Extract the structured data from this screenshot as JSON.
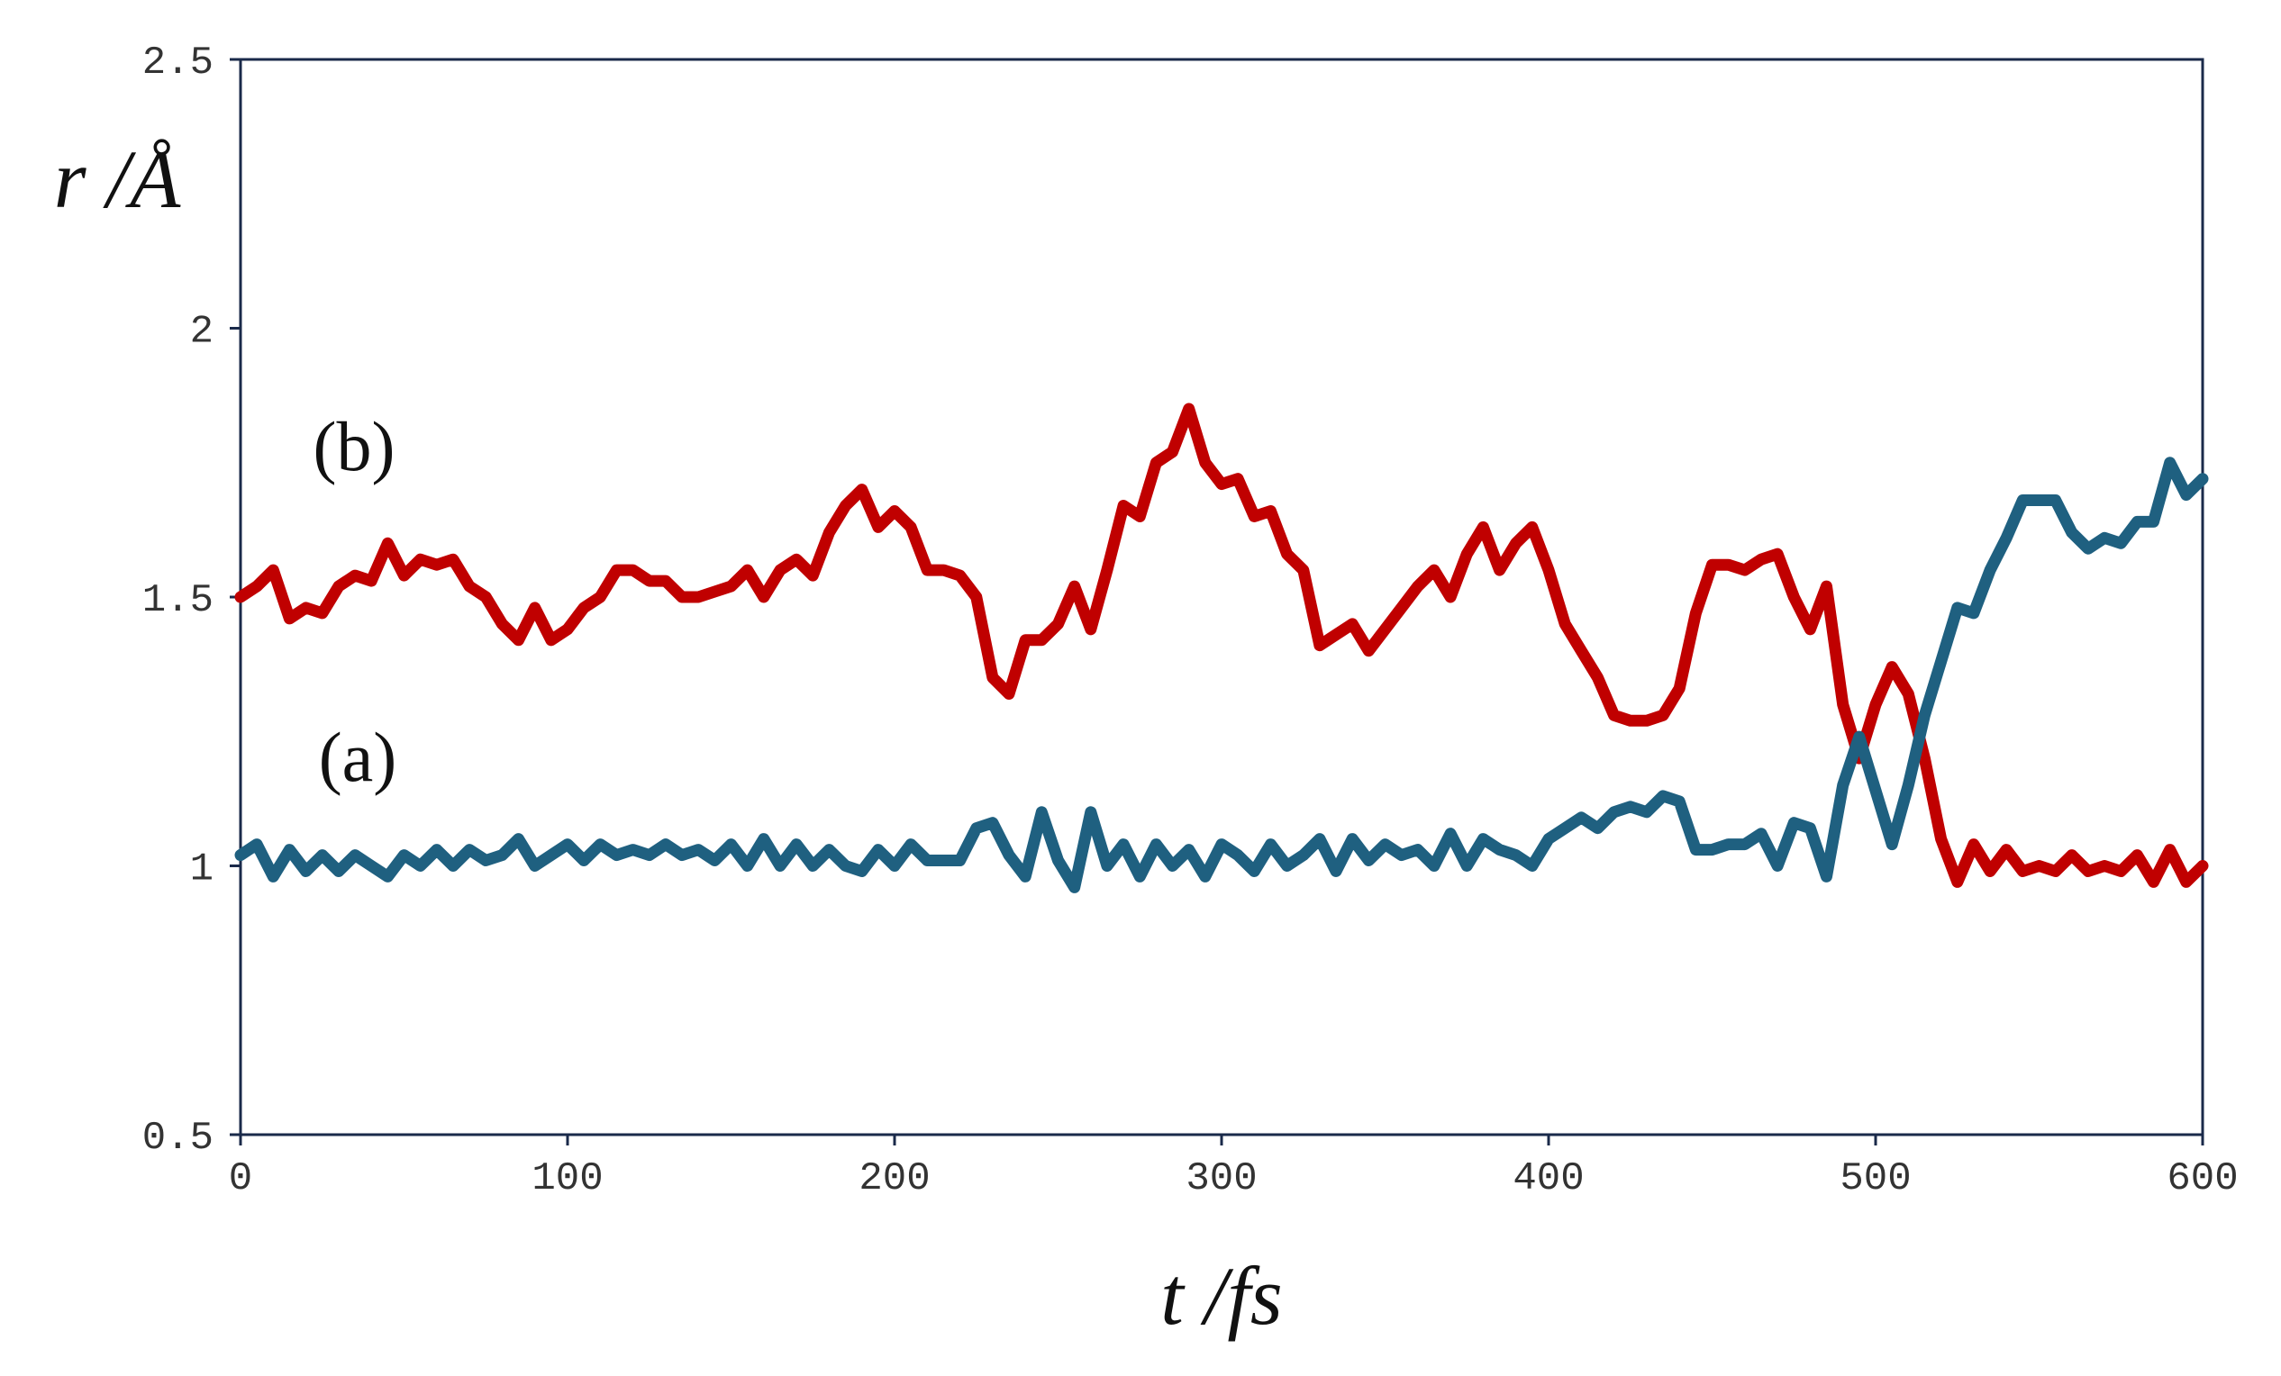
{
  "chart_data": {
    "type": "line",
    "x_label": "t /fs",
    "y_label": "r /Å",
    "annotations": [
      "(b)",
      "(a)"
    ],
    "xlim": [
      0,
      600
    ],
    "xticks": [
      0,
      100,
      200,
      300,
      400,
      500,
      600
    ],
    "ylim": [
      0.5,
      2.5
    ],
    "yticks": [
      0.5,
      1,
      1.5,
      2,
      2.5
    ],
    "grid": false,
    "x": [
      0,
      5,
      10,
      15,
      20,
      25,
      30,
      35,
      40,
      45,
      50,
      55,
      60,
      65,
      70,
      75,
      80,
      85,
      90,
      95,
      100,
      105,
      110,
      115,
      120,
      125,
      130,
      135,
      140,
      145,
      150,
      155,
      160,
      165,
      170,
      175,
      180,
      185,
      190,
      195,
      200,
      205,
      210,
      215,
      220,
      225,
      230,
      235,
      240,
      245,
      250,
      255,
      260,
      265,
      270,
      275,
      280,
      285,
      290,
      295,
      300,
      305,
      310,
      315,
      320,
      325,
      330,
      335,
      340,
      345,
      350,
      355,
      360,
      365,
      370,
      375,
      380,
      385,
      390,
      395,
      400,
      405,
      410,
      415,
      420,
      425,
      430,
      435,
      440,
      445,
      450,
      455,
      460,
      465,
      470,
      475,
      480,
      485,
      490,
      495,
      500,
      505,
      510,
      515,
      520,
      525,
      530,
      535,
      540,
      545,
      550,
      555,
      560,
      565,
      570,
      575,
      580,
      585,
      590,
      595,
      600
    ],
    "series": [
      {
        "color": "#c00000",
        "values": [
          1.5,
          1.52,
          1.55,
          1.46,
          1.48,
          1.47,
          1.52,
          1.54,
          1.53,
          1.6,
          1.54,
          1.57,
          1.56,
          1.57,
          1.52,
          1.5,
          1.45,
          1.42,
          1.48,
          1.42,
          1.44,
          1.48,
          1.5,
          1.55,
          1.55,
          1.53,
          1.53,
          1.5,
          1.5,
          1.51,
          1.52,
          1.55,
          1.5,
          1.55,
          1.57,
          1.54,
          1.62,
          1.67,
          1.7,
          1.63,
          1.66,
          1.63,
          1.55,
          1.55,
          1.54,
          1.5,
          1.35,
          1.32,
          1.42,
          1.42,
          1.45,
          1.52,
          1.44,
          1.55,
          1.67,
          1.65,
          1.75,
          1.77,
          1.85,
          1.75,
          1.71,
          1.72,
          1.65,
          1.66,
          1.58,
          1.55,
          1.41,
          1.43,
          1.45,
          1.4,
          1.44,
          1.48,
          1.52,
          1.55,
          1.5,
          1.58,
          1.63,
          1.55,
          1.6,
          1.63,
          1.55,
          1.45,
          1.4,
          1.35,
          1.28,
          1.27,
          1.27,
          1.28,
          1.33,
          1.47,
          1.56,
          1.56,
          1.55,
          1.57,
          1.58,
          1.5,
          1.44,
          1.52,
          1.3,
          1.2,
          1.3,
          1.37,
          1.32,
          1.2,
          1.05,
          0.97,
          1.04,
          0.99,
          1.03,
          0.99,
          1.0,
          0.99,
          1.02,
          0.99,
          1.0,
          0.99,
          1.02,
          0.97,
          1.03,
          0.97,
          1.0
        ]
      },
      {
        "color": "#1f6080",
        "values": [
          1.02,
          1.04,
          0.98,
          1.03,
          0.99,
          1.02,
          0.99,
          1.02,
          1.0,
          0.98,
          1.02,
          1.0,
          1.03,
          1.0,
          1.03,
          1.01,
          1.02,
          1.05,
          1.0,
          1.02,
          1.04,
          1.01,
          1.04,
          1.02,
          1.03,
          1.02,
          1.04,
          1.02,
          1.03,
          1.01,
          1.04,
          1.0,
          1.05,
          1.0,
          1.04,
          1.0,
          1.03,
          1.0,
          0.99,
          1.03,
          1.0,
          1.04,
          1.01,
          1.01,
          1.01,
          1.07,
          1.08,
          1.02,
          0.98,
          1.1,
          1.01,
          0.96,
          1.1,
          1.0,
          1.04,
          0.98,
          1.04,
          1.0,
          1.03,
          0.98,
          1.04,
          1.02,
          0.99,
          1.04,
          1.0,
          1.02,
          1.05,
          0.99,
          1.05,
          1.01,
          1.04,
          1.02,
          1.03,
          1.0,
          1.06,
          1.0,
          1.05,
          1.03,
          1.02,
          1.0,
          1.05,
          1.07,
          1.09,
          1.07,
          1.1,
          1.11,
          1.1,
          1.13,
          1.12,
          1.03,
          1.03,
          1.04,
          1.04,
          1.06,
          1.0,
          1.08,
          1.07,
          0.98,
          1.15,
          1.24,
          1.14,
          1.04,
          1.15,
          1.28,
          1.38,
          1.48,
          1.47,
          1.55,
          1.61,
          1.68,
          1.68,
          1.68,
          1.62,
          1.59,
          1.61,
          1.6,
          1.64,
          1.64,
          1.75,
          1.69,
          1.72
        ]
      }
    ]
  }
}
